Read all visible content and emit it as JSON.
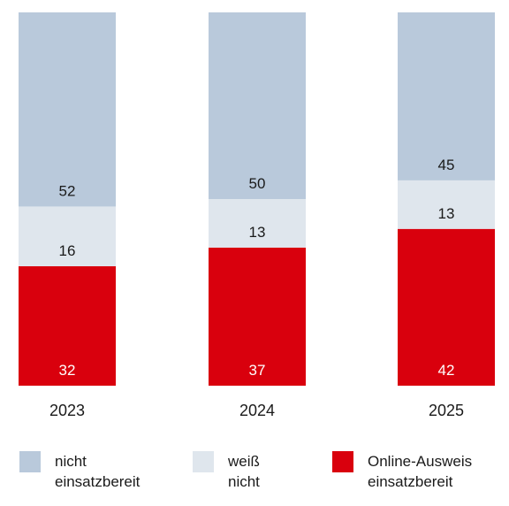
{
  "chart_data": {
    "type": "bar",
    "stacked": true,
    "percent_stacked": true,
    "categories": [
      "2023",
      "2024",
      "2025"
    ],
    "series": [
      {
        "name": "Online-Ausweis einsatzbereit",
        "values": [
          32,
          37,
          42
        ],
        "color": "#d9000d",
        "label_color": "#ffffff"
      },
      {
        "name": "weiß nicht",
        "values": [
          16,
          13,
          13
        ],
        "color": "#dfe6ed",
        "label_color": "#1a1a1a"
      },
      {
        "name": "nicht einsatzbereit",
        "values": [
          52,
          50,
          45
        ],
        "color": "#b9c9db",
        "label_color": "#1a1a1a"
      }
    ],
    "legend": {
      "position": "bottom",
      "items": [
        {
          "lines": [
            "nicht",
            "einsatzbereit"
          ],
          "color": "#b9c9db"
        },
        {
          "lines": [
            "weiß",
            "nicht"
          ],
          "color": "#dfe6ed"
        },
        {
          "lines": [
            "Online-Ausweis",
            "einsatzbereit"
          ],
          "color": "#d9000d"
        }
      ]
    },
    "ylim": [
      0,
      100
    ],
    "grid": false
  }
}
